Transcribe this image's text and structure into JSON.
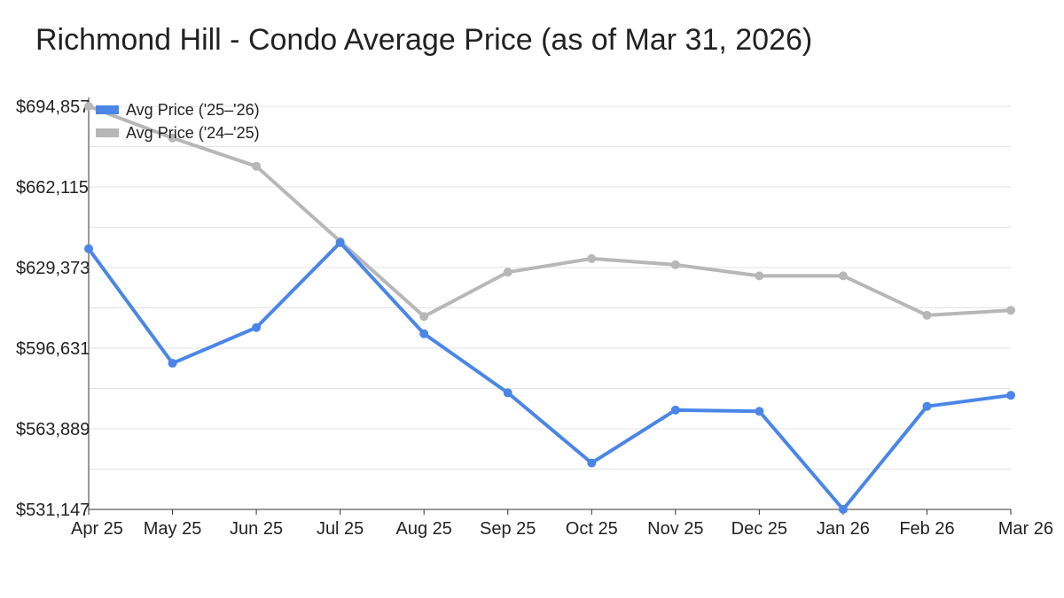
{
  "chart_data": {
    "type": "line",
    "title": "Richmond Hill - Condo Average Price (as of Mar 31, 2026)",
    "xlabel": "",
    "ylabel": "",
    "categories": [
      "Apr 25",
      "May 25",
      "Jun 25",
      "Jul 25",
      "Aug 25",
      "Sep 25",
      "Oct 25",
      "Nov 25",
      "Dec 25",
      "Jan 26",
      "Feb 26",
      "Mar 26"
    ],
    "y_ticks": [
      "$531,147",
      "$563,889",
      "$596,631",
      "$629,373",
      "$662,115",
      "$694,857"
    ],
    "ylim": [
      531147,
      694857
    ],
    "grid": true,
    "legend_position": "top-left",
    "series": [
      {
        "name": "Avg Price ('25–'26)",
        "color": "#4a86e8",
        "values": [
          637000,
          590500,
          605000,
          639500,
          602500,
          578500,
          550000,
          571500,
          571000,
          531147,
          573000,
          577500
        ]
      },
      {
        "name": "Avg Price ('24–'25)",
        "color": "#b7b7b7",
        "values": [
          694857,
          682000,
          670500,
          640000,
          609500,
          627500,
          633000,
          630500,
          626000,
          626000,
          610000,
          612000
        ]
      }
    ]
  }
}
